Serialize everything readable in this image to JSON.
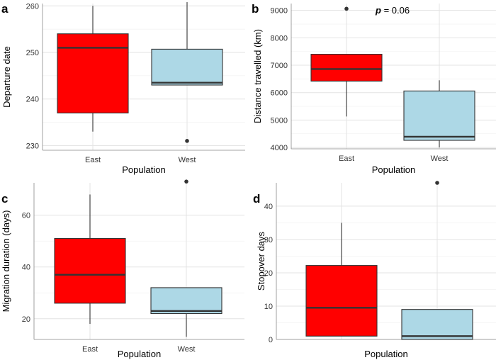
{
  "chart_data": [
    {
      "type": "box",
      "panel_label": "a",
      "xlabel": "Population",
      "ylabel": "Departure date",
      "categories": [
        "East",
        "West"
      ],
      "ylim": [
        229,
        260.5
      ],
      "yticks": [
        230,
        240,
        250,
        260
      ],
      "boxes": [
        {
          "category": "East",
          "whisker_low": 233,
          "q1": 237,
          "median": 251,
          "q3": 254,
          "whisker_high": 260,
          "outliers": [],
          "fill": "#ff0000"
        },
        {
          "category": "West",
          "whisker_low": 243,
          "q1": 243,
          "median": 243.5,
          "q3": 250.7,
          "whisker_high": 260.8,
          "outliers": [
            231
          ],
          "fill": "#add8e6"
        }
      ],
      "annotation": ""
    },
    {
      "type": "box",
      "panel_label": "b",
      "xlabel": "Population",
      "ylabel": "Distance travelled (km)",
      "categories": [
        "East",
        "West"
      ],
      "ylim": [
        3950,
        9250
      ],
      "yticks": [
        4000,
        5000,
        6000,
        7000,
        8000,
        9000
      ],
      "boxes": [
        {
          "category": "East",
          "whisker_low": 5130,
          "q1": 6420,
          "median": 6860,
          "q3": 7400,
          "whisker_high": 7400,
          "outliers": [
            9060
          ],
          "fill": "#ff0000"
        },
        {
          "category": "West",
          "whisker_low": 4000,
          "q1": 4260,
          "median": 4390,
          "q3": 6060,
          "whisker_high": 6450,
          "outliers": [],
          "fill": "#add8e6"
        }
      ],
      "annotation": {
        "prefix": "p",
        "text": " = 0.06"
      }
    },
    {
      "type": "box",
      "panel_label": "c",
      "xlabel": "Population",
      "ylabel": "Migration duration (days)",
      "categories": [
        "East",
        "West"
      ],
      "ylim": [
        12,
        72.5
      ],
      "yticks": [
        20,
        40,
        60
      ],
      "boxes": [
        {
          "category": "East",
          "whisker_low": 18,
          "q1": 26,
          "median": 37,
          "q3": 51,
          "whisker_high": 68,
          "outliers": [],
          "fill": "#ff0000"
        },
        {
          "category": "West",
          "whisker_low": 13,
          "q1": 22,
          "median": 23,
          "q3": 32,
          "whisker_high": 32,
          "outliers": [
            73
          ],
          "fill": "#add8e6"
        }
      ],
      "annotation": ""
    },
    {
      "type": "box",
      "panel_label": "d",
      "xlabel": "Population",
      "ylabel": "Stopover days",
      "categories": [
        "",
        ""
      ],
      "ylim": [
        0,
        47
      ],
      "yticks": [
        0,
        10,
        20,
        30,
        40
      ],
      "boxes": [
        {
          "category": "",
          "whisker_low": 1,
          "q1": 1,
          "median": 9.5,
          "q3": 22.2,
          "whisker_high": 35,
          "outliers": [],
          "fill": "#ff0000"
        },
        {
          "category": "",
          "whisker_low": 0,
          "q1": 0,
          "median": 1,
          "q3": 9,
          "whisker_high": 9,
          "outliers": [
            47
          ],
          "fill": "#add8e6"
        }
      ],
      "annotation": ""
    }
  ]
}
